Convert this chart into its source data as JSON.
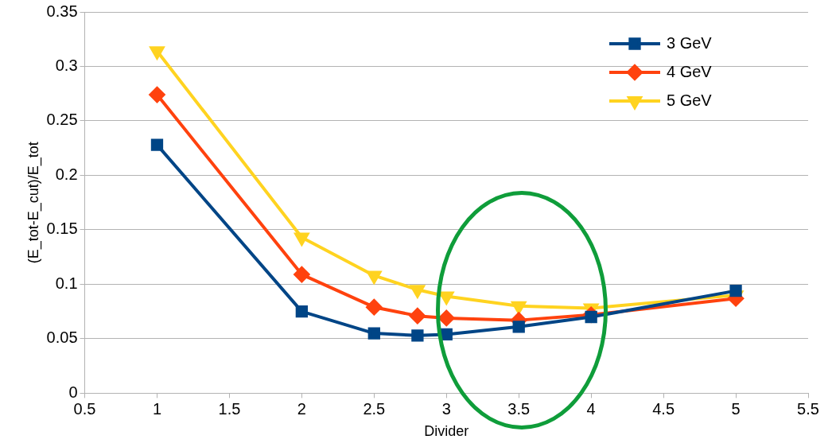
{
  "chart_data": {
    "type": "line",
    "xlabel": "Divider",
    "ylabel": "(E_tot-E_cut)/E_tot",
    "xlim": [
      0.5,
      5.5
    ],
    "xticks": [
      0.5,
      1,
      1.5,
      2,
      2.5,
      3,
      3.5,
      4,
      4.5,
      5,
      5.5
    ],
    "ylim": [
      0,
      0.35
    ],
    "yticks": [
      0,
      0.05,
      0.1,
      0.15,
      0.2,
      0.25,
      0.3,
      0.35
    ],
    "x": [
      1,
      2,
      2.5,
      2.8,
      3,
      3.5,
      4,
      5
    ],
    "series": [
      {
        "name": "3 GeV",
        "color": "#004586",
        "marker": "square",
        "values": [
          0.228,
          0.075,
          0.055,
          0.053,
          0.054,
          0.061,
          0.07,
          0.094
        ]
      },
      {
        "name": "4 GeV",
        "color": "#ff420e",
        "marker": "diamond",
        "values": [
          0.274,
          0.109,
          0.079,
          0.071,
          0.069,
          0.067,
          0.072,
          0.087
        ]
      },
      {
        "name": "5 GeV",
        "color": "#ffd320",
        "marker": "triangle",
        "values": [
          0.314,
          0.143,
          0.108,
          0.095,
          0.089,
          0.08,
          0.078,
          0.09
        ]
      }
    ],
    "grid": "y",
    "legend": "top right"
  }
}
